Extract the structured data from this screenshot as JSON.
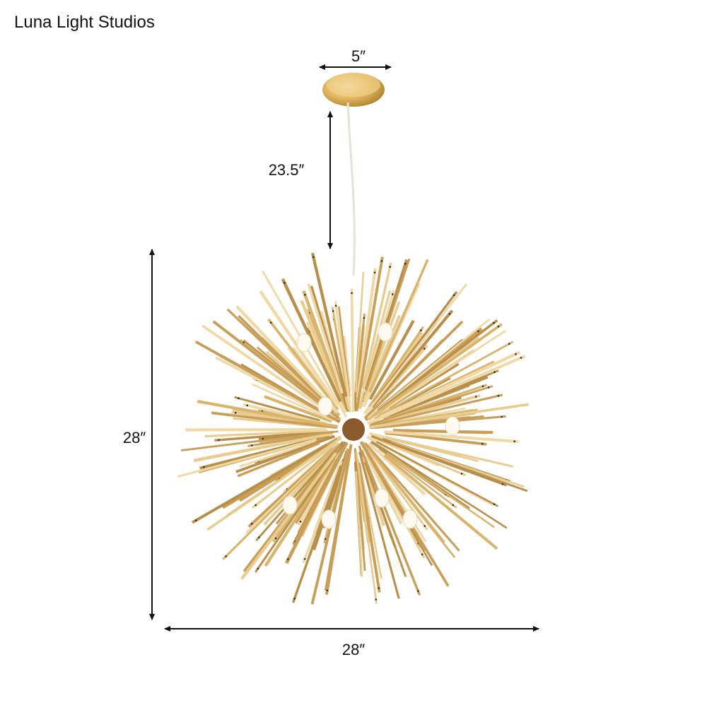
{
  "header": {
    "brand": "Luna Light Studios"
  },
  "dimensions": {
    "canopy_width": "5″",
    "cord_length": "23.5″",
    "height": "28″",
    "width": "28″"
  }
}
